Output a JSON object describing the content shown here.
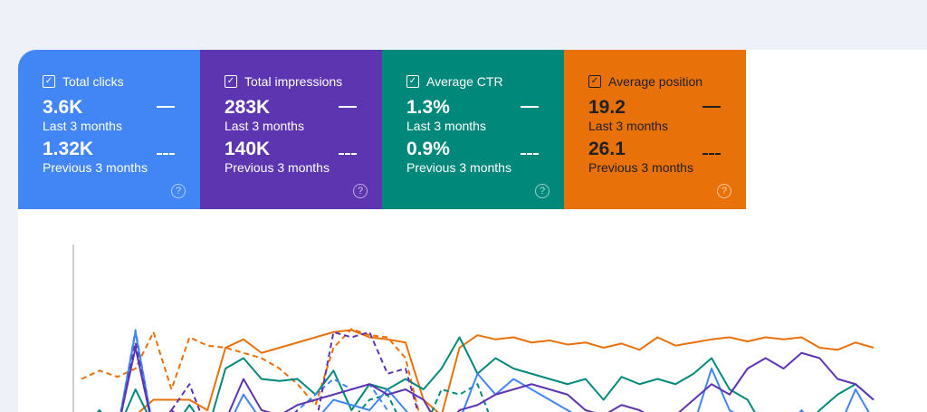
{
  "metrics": [
    {
      "label": "Total clicks",
      "current": "3.6K",
      "current_label": "Last 3 months",
      "previous": "1.32K",
      "previous_label": "Previous 3 months",
      "color": "#4285f4",
      "checked": true
    },
    {
      "label": "Total impressions",
      "current": "283K",
      "current_label": "Last 3 months",
      "previous": "140K",
      "previous_label": "Previous 3 months",
      "color": "#5e35b1",
      "checked": true
    },
    {
      "label": "Average CTR",
      "current": "1.3%",
      "current_label": "Last 3 months",
      "previous": "0.9%",
      "previous_label": "Previous 3 months",
      "color": "#00897b",
      "checked": true
    },
    {
      "label": "Average position",
      "current": "19.2",
      "current_label": "Last 3 months",
      "previous": "26.1",
      "previous_label": "Previous 3 months",
      "color": "#e8710a",
      "checked": true
    }
  ],
  "help_icon": "?",
  "chart_data": {
    "type": "line",
    "grid": false,
    "series": [
      {
        "metric": "position",
        "period": "current",
        "color": "#e8710a",
        "dashed": false,
        "values": [
          0,
          0,
          0,
          15,
          30,
          30,
          30,
          20,
          80,
          88,
          75,
          80,
          85,
          90,
          95,
          97,
          90,
          88,
          85,
          30,
          15,
          80,
          92,
          88,
          90,
          85,
          87,
          83,
          85,
          80,
          84,
          78,
          90,
          82,
          85,
          88,
          90,
          86,
          90,
          88,
          90,
          80,
          78,
          85,
          80
        ]
      },
      {
        "metric": "position",
        "period": "previous",
        "color": "#e8710a",
        "dashed": true,
        "values": [
          50,
          58,
          52,
          60,
          95,
          40,
          90,
          82,
          80,
          75,
          70,
          60,
          45,
          25,
          80,
          98,
          92,
          90,
          70,
          0
        ]
      },
      {
        "metric": "ctr",
        "period": "current",
        "color": "#00897b",
        "dashed": false,
        "values": [
          0,
          20,
          0,
          40,
          5,
          0,
          25,
          0,
          60,
          70,
          50,
          48,
          50,
          35,
          58,
          20,
          45,
          40,
          50,
          40,
          60,
          90,
          55,
          70,
          60,
          55,
          50,
          45,
          50,
          30,
          52,
          45,
          50,
          45,
          55,
          70,
          40,
          30,
          0,
          5,
          0,
          20,
          35,
          45,
          30
        ]
      },
      {
        "metric": "ctr",
        "period": "previous",
        "color": "#00897b",
        "dashed": true,
        "values": [
          0,
          10,
          0,
          95,
          0,
          5,
          0,
          0,
          5,
          0,
          0,
          0,
          0,
          0,
          5,
          10,
          30,
          35,
          0,
          0,
          40,
          35,
          45,
          0
        ]
      },
      {
        "metric": "clicks",
        "period": "current",
        "color": "#4285f4",
        "dashed": false,
        "values": [
          0,
          0,
          0,
          95,
          0,
          0,
          0,
          5,
          0,
          35,
          10,
          0,
          5,
          10,
          30,
          25,
          20,
          40,
          20,
          0,
          10,
          10,
          55,
          35,
          50,
          40,
          30,
          20,
          10,
          0,
          0,
          5,
          0,
          10,
          5,
          60,
          20,
          10,
          0,
          0,
          20,
          0,
          0,
          40,
          10
        ]
      },
      {
        "metric": "clicks",
        "period": "previous",
        "color": "#4285f4",
        "dashed": true,
        "values": [
          0,
          0,
          0,
          97,
          0,
          0,
          0,
          0,
          0,
          15,
          0,
          5,
          20,
          35,
          50,
          40,
          45,
          20,
          0
        ]
      },
      {
        "metric": "impressions",
        "period": "current",
        "color": "#5e35b1",
        "dashed": false,
        "values": [
          0,
          0,
          0,
          80,
          0,
          20,
          5,
          0,
          10,
          50,
          20,
          15,
          25,
          30,
          35,
          40,
          45,
          35,
          40,
          30,
          0,
          20,
          25,
          35,
          40,
          45,
          40,
          35,
          20,
          15,
          25,
          20,
          10,
          15,
          30,
          45,
          35,
          60,
          70,
          60,
          75,
          70,
          50,
          45,
          30
        ]
      },
      {
        "metric": "impressions",
        "period": "previous",
        "color": "#5e35b1",
        "dashed": true,
        "values": [
          0,
          0,
          0,
          85,
          0,
          20,
          45,
          0,
          0,
          10,
          0,
          0,
          20,
          5,
          95,
          90,
          95,
          55,
          60,
          0
        ]
      }
    ]
  }
}
